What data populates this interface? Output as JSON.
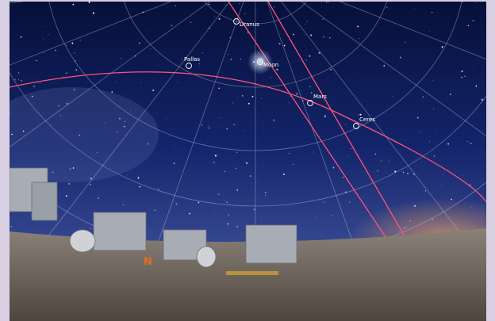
{
  "objects": [
    {
      "label": "Uranus"
    },
    {
      "label": "Moon"
    },
    {
      "label": "Pallas"
    },
    {
      "label": "Mars"
    },
    {
      "label": "Ceres"
    }
  ],
  "direction": "N"
}
